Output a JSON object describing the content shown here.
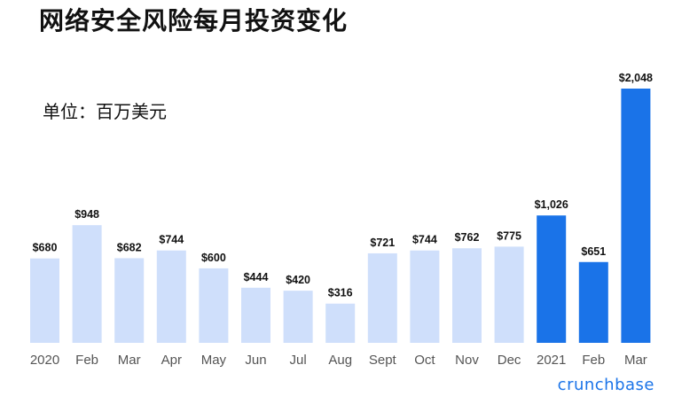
{
  "header": {
    "title": "网络安全风险每月投资变化",
    "unit_label": "单位：百万美元"
  },
  "brand": "crunchbase",
  "chart_data": {
    "type": "bar",
    "categories": [
      "2020",
      "Feb",
      "Mar",
      "Apr",
      "May",
      "Jun",
      "Jul",
      "Aug",
      "Sept",
      "Oct",
      "Nov",
      "Dec",
      "2021",
      "Feb",
      "Mar"
    ],
    "values": [
      680,
      948,
      682,
      744,
      600,
      444,
      420,
      316,
      721,
      744,
      762,
      775,
      1026,
      651,
      2048
    ],
    "value_labels": [
      "$680",
      "$948",
      "$682",
      "$744",
      "$600",
      "$444",
      "$420",
      "$316",
      "$721",
      "$744",
      "$762",
      "$775",
      "$1,026",
      "$651",
      "$2,048"
    ],
    "highlight_from_index": 12,
    "colors": {
      "light": "#cfdffb",
      "dark": "#1a73e8",
      "axis": "#555555",
      "label": "#111111"
    },
    "ylim": [
      0,
      2048
    ],
    "grid": false,
    "title": "网络安全风险每月投资变化"
  }
}
